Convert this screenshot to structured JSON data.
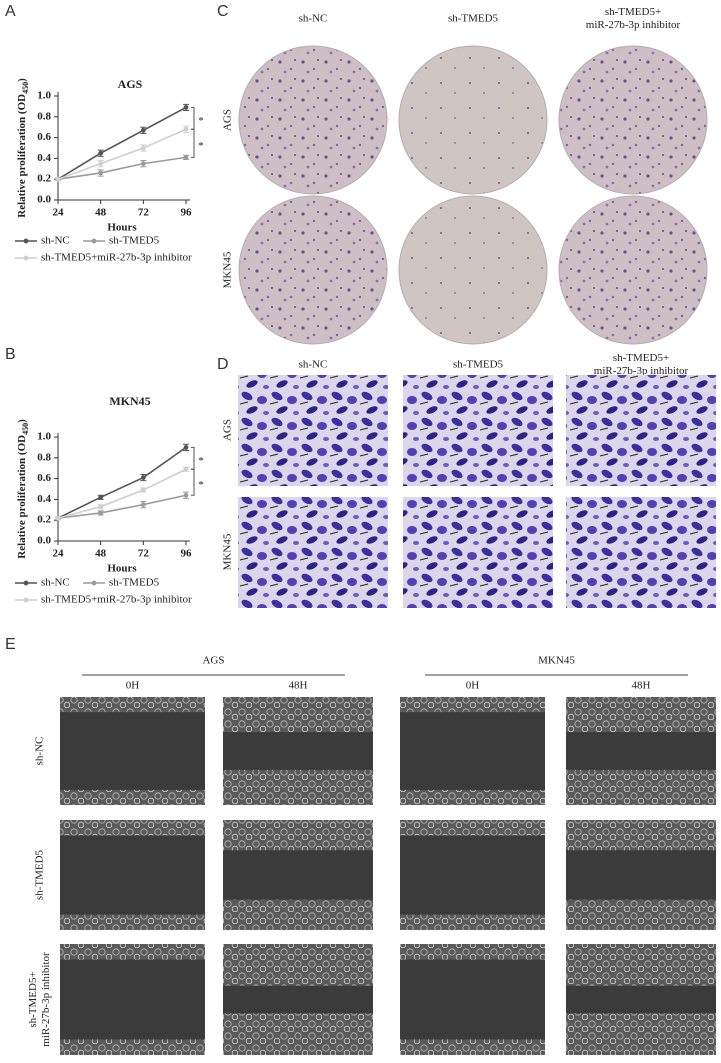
{
  "panel_labels": [
    "A",
    "B",
    "C",
    "D",
    "E"
  ],
  "chart_data": [
    {
      "type": "line",
      "title": "AGS",
      "x_label": "Hours",
      "y_label": {
        "main": "Relative proliferation (OD",
        "sub": "450",
        "end": ")"
      },
      "x": [
        24,
        48,
        72,
        96
      ],
      "xlim": [
        24,
        96
      ],
      "xticks": [
        24,
        48,
        72,
        96
      ],
      "ylim": [
        0,
        1
      ],
      "yticks": [
        {
          "value": 0,
          "label": "0.0"
        },
        0.2,
        0.4,
        0.6,
        0.8,
        {
          "value": 1,
          "label": "1.0"
        }
      ],
      "series": [
        {
          "name": "sh-NC",
          "color": "#555555",
          "values": [
            0.2,
            0.45,
            0.67,
            0.89
          ],
          "errors": [
            0.01,
            0.03,
            0.03,
            0.03
          ]
        },
        {
          "name": "sh-TMED5",
          "color": "#9a9a9a",
          "values": [
            0.2,
            0.26,
            0.35,
            0.41
          ],
          "errors": [
            0.01,
            0.03,
            0.03,
            0.02
          ]
        },
        {
          "name": "sh-TMED5+miR-27b-3p inhibitor",
          "color": "#cfcfcf",
          "values": [
            0.2,
            0.35,
            0.5,
            0.68
          ],
          "errors": [
            0.01,
            0.03,
            0.03,
            0.03
          ]
        }
      ],
      "annotations": [
        "*",
        "*"
      ]
    },
    {
      "type": "line",
      "title": "MKN45",
      "x_label": "Hours",
      "y_label": {
        "main": "Relative proliferation (OD",
        "sub": "450",
        "end": ")"
      },
      "x": [
        24,
        48,
        72,
        96
      ],
      "xlim": [
        24,
        96
      ],
      "xticks": [
        24,
        48,
        72,
        96
      ],
      "ylim": [
        0,
        1
      ],
      "yticks": [
        {
          "value": 0,
          "label": "0.0"
        },
        0.2,
        0.4,
        0.6,
        0.8,
        {
          "value": 1,
          "label": "1.0"
        }
      ],
      "series": [
        {
          "name": "sh-NC",
          "color": "#555555",
          "values": [
            0.22,
            0.42,
            0.61,
            0.9
          ],
          "errors": [
            0.01,
            0.02,
            0.03,
            0.03
          ]
        },
        {
          "name": "sh-TMED5",
          "color": "#9a9a9a",
          "values": [
            0.22,
            0.27,
            0.35,
            0.44
          ],
          "errors": [
            0.01,
            0.02,
            0.03,
            0.03
          ]
        },
        {
          "name": "sh-TMED5+miR-27b-3p inhibitor",
          "color": "#cfcfcf",
          "values": [
            0.22,
            0.33,
            0.49,
            0.69
          ],
          "errors": [
            0.01,
            0.02,
            0.02,
            0.02
          ]
        }
      ],
      "annotations": [
        "*",
        "*"
      ]
    }
  ],
  "panel_c": {
    "columns": [
      "sh-NC",
      "sh-TMED5",
      [
        "sh-TMED5+",
        "miR-27b-3p inhibitor"
      ]
    ],
    "rows": [
      "AGS",
      "MKN45"
    ]
  },
  "panel_d": {
    "columns": [
      "sh-NC",
      "sh-TMED5",
      [
        "sh-TMED5+",
        "miR-27b-3p inhibitor"
      ]
    ],
    "rows": [
      "AGS",
      "MKN45"
    ]
  },
  "panel_e": {
    "groups": [
      "AGS",
      "MKN45"
    ],
    "timepoints": [
      "0H",
      "48H",
      "0H",
      "48H"
    ],
    "rows": [
      "sh-NC",
      "sh-TMED5",
      [
        "sh-TMED5+",
        "miR-27b-3p inhibitor"
      ]
    ]
  }
}
